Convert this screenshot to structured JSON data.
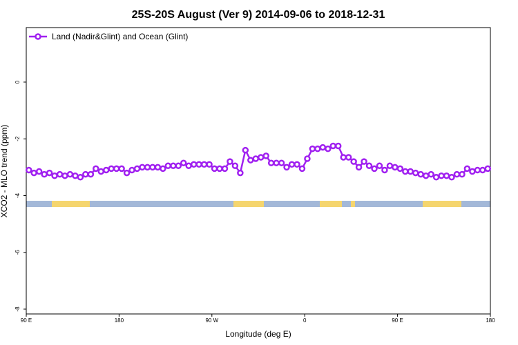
{
  "chart_data": {
    "type": "line",
    "title": "25S-20S August (Ver 9)   2014-09-06 to 2018-12-31",
    "xlabel": "Longitude (deg E)",
    "ylabel": "XCO2 - MLO trend (ppm)",
    "xlim": [
      90,
      540
    ],
    "ylim": [
      -8.17,
      1.92
    ],
    "xticks": [
      {
        "value": 90,
        "label": "90 E"
      },
      {
        "value": 180,
        "label": "180"
      },
      {
        "value": 270,
        "label": "90 W"
      },
      {
        "value": 360,
        "label": "0"
      },
      {
        "value": 450,
        "label": "90 E"
      },
      {
        "value": 540,
        "label": "180"
      }
    ],
    "yticks": [
      0,
      -2,
      -4,
      -6,
      -8
    ],
    "legend": "top-left",
    "x": [
      92.5,
      97.5,
      102.5,
      107.5,
      112.5,
      117.5,
      122.5,
      127.5,
      132.5,
      137.5,
      142.5,
      147.5,
      152.5,
      157.5,
      162.5,
      167.5,
      172.5,
      177.5,
      182.5,
      187.5,
      192.5,
      197.5,
      202.5,
      207.5,
      212.5,
      217.5,
      222.5,
      227.5,
      232.5,
      237.5,
      242.5,
      247.5,
      252.5,
      257.5,
      262.5,
      267.5,
      272.5,
      277.5,
      282.5,
      287.5,
      292.5,
      297.5,
      302.5,
      307.5,
      312.5,
      317.5,
      322.5,
      327.5,
      332.5,
      337.5,
      342.5,
      347.5,
      352.5,
      357.5,
      362.5,
      367.5,
      372.5,
      377.5,
      382.5,
      387.5,
      392.5,
      397.5,
      402.5,
      407.5,
      412.5,
      417.5,
      422.5,
      427.5,
      432.5,
      437.5,
      442.5,
      447.5,
      452.5,
      457.5,
      462.5,
      467.5,
      472.5,
      477.5,
      482.5,
      487.5,
      492.5,
      497.5,
      502.5,
      507.5,
      512.5,
      517.5,
      522.5,
      527.5,
      532.5,
      537.5
    ],
    "series": [
      {
        "name": "Land (Nadir&Glint) and Ocean (Glint)",
        "color": "#a020f0",
        "values": [
          -3.1,
          -3.2,
          -3.15,
          -3.25,
          -3.2,
          -3.3,
          -3.25,
          -3.3,
          -3.25,
          -3.3,
          -3.35,
          -3.25,
          -3.25,
          -3.05,
          -3.15,
          -3.1,
          -3.05,
          -3.05,
          -3.05,
          -3.2,
          -3.1,
          -3.05,
          -3.0,
          -3.0,
          -3.0,
          -3.0,
          -3.05,
          -2.95,
          -2.95,
          -2.95,
          -2.85,
          -2.95,
          -2.9,
          -2.9,
          -2.9,
          -2.9,
          -3.05,
          -3.05,
          -3.05,
          -2.8,
          -2.95,
          -3.2,
          -2.4,
          -2.75,
          -2.7,
          -2.65,
          -2.6,
          -2.85,
          -2.85,
          -2.85,
          -3.0,
          -2.9,
          -2.9,
          -3.05,
          -2.7,
          -2.35,
          -2.35,
          -2.3,
          -2.35,
          -2.25,
          -2.25,
          -2.65,
          -2.65,
          -2.8,
          -3.0,
          -2.8,
          -2.95,
          -3.05,
          -2.95,
          -3.1,
          -2.95,
          -3.0,
          -3.05,
          -3.15,
          -3.15,
          -3.2,
          -3.25,
          -3.3,
          -3.25,
          -3.35,
          -3.3,
          -3.3,
          -3.35,
          -3.25,
          -3.25,
          -3.05,
          -3.15,
          -3.1,
          -3.1,
          -3.05
        ]
      }
    ]
  }
}
